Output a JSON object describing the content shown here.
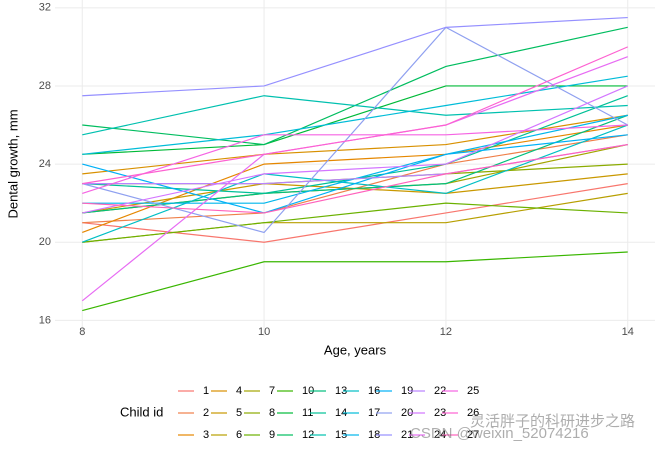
{
  "chart_data": {
    "type": "line",
    "x_label": "Age, years",
    "y_label": "Dental growth, mm",
    "legend_title": "Child id",
    "x": [
      8,
      10,
      12,
      14
    ],
    "xlim": [
      7.7,
      14.3
    ],
    "ylim": [
      15.2,
      32.4
    ],
    "xticks": [
      8,
      10,
      12,
      14
    ],
    "yticks": [
      16,
      20,
      24,
      28,
      32
    ],
    "grid": true,
    "legend": "bottom",
    "series": [
      {
        "name": "1",
        "color": "#F8766D",
        "values": [
          21,
          20,
          21.5,
          23
        ]
      },
      {
        "name": "2",
        "color": "#EF7F49",
        "values": [
          21,
          21.5,
          24,
          25.5
        ]
      },
      {
        "name": "3",
        "color": "#E58700",
        "values": [
          20.5,
          24,
          24.5,
          26
        ]
      },
      {
        "name": "4",
        "color": "#D89000",
        "values": [
          23.5,
          24.5,
          25,
          26.5
        ]
      },
      {
        "name": "5",
        "color": "#C99800",
        "values": [
          21.5,
          23,
          22.5,
          23.5
        ]
      },
      {
        "name": "6",
        "color": "#B79F00",
        "values": [
          20,
          21,
          21,
          22.5
        ]
      },
      {
        "name": "7",
        "color": "#A3A500",
        "values": [
          21.5,
          22.5,
          23,
          25
        ]
      },
      {
        "name": "8",
        "color": "#8BAB00",
        "values": [
          23,
          23,
          23.5,
          24
        ]
      },
      {
        "name": "9",
        "color": "#6BB100",
        "values": [
          20,
          21,
          22,
          21.5
        ]
      },
      {
        "name": "10",
        "color": "#39B600",
        "values": [
          16.5,
          19,
          19,
          19.5
        ]
      },
      {
        "name": "11",
        "color": "#00BA38",
        "values": [
          24.5,
          25,
          28,
          28
        ]
      },
      {
        "name": "12",
        "color": "#00BD5F",
        "values": [
          26,
          25,
          29,
          31
        ]
      },
      {
        "name": "13",
        "color": "#00BF7D",
        "values": [
          21.5,
          22.5,
          23,
          26.5
        ]
      },
      {
        "name": "14",
        "color": "#00C097",
        "values": [
          23,
          22.5,
          24,
          27.5
        ]
      },
      {
        "name": "15",
        "color": "#00C0AF",
        "values": [
          25.5,
          27.5,
          26.5,
          27
        ]
      },
      {
        "name": "16",
        "color": "#00BFC4",
        "values": [
          20,
          23.5,
          22.5,
          26
        ]
      },
      {
        "name": "17",
        "color": "#00BCD8",
        "values": [
          24.5,
          25.5,
          27,
          28.5
        ]
      },
      {
        "name": "18",
        "color": "#00B6EB",
        "values": [
          22,
          22,
          24.5,
          26.5
        ]
      },
      {
        "name": "19",
        "color": "#00B0F6",
        "values": [
          24,
          21.5,
          24.5,
          25.5
        ]
      },
      {
        "name": "20",
        "color": "#8FA0F0",
        "values": [
          23,
          20.5,
          31,
          26
        ]
      },
      {
        "name": "21",
        "color": "#9590FF",
        "values": [
          27.5,
          28,
          31,
          31.5
        ]
      },
      {
        "name": "22",
        "color": "#B983FF",
        "values": [
          23,
          23,
          23.5,
          25
        ]
      },
      {
        "name": "23",
        "color": "#D376FF",
        "values": [
          21.5,
          23.5,
          24,
          28
        ]
      },
      {
        "name": "24",
        "color": "#E76BF3",
        "values": [
          17,
          24.5,
          26,
          29.5
        ]
      },
      {
        "name": "25",
        "color": "#F564E3",
        "values": [
          22.5,
          25.5,
          25.5,
          26
        ]
      },
      {
        "name": "26",
        "color": "#FD61D1",
        "values": [
          23,
          24.5,
          26,
          30
        ]
      },
      {
        "name": "27",
        "color": "#FF62BC",
        "values": [
          22,
          21.5,
          23.5,
          25
        ]
      }
    ]
  },
  "watermark": {
    "line1": "灵活胖子的科研进步之路",
    "line2": "CSDN @weixin_52074216"
  }
}
